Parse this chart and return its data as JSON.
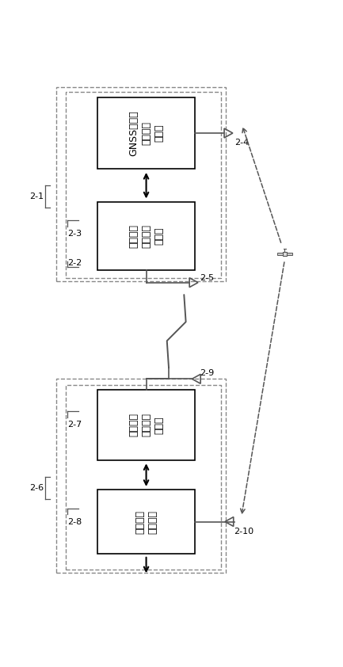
{
  "fig_width": 4.33,
  "fig_height": 8.42,
  "dpi": 100,
  "bg_color": "#ffffff",
  "box_fill": "#ffffff",
  "box_edge": "#000000",
  "dash_edge": "#888888",
  "line_color": "#555555",
  "arrow_color": "#000000",
  "text_color": "#000000",
  "box1_lines": [
    "GNSS基准站",
    "数据处理",
    "接收机"
  ],
  "box2_lines": [
    "差分数据",
    "编码调制",
    "播发器"
  ],
  "box3_lines": [
    "差分数据",
    "编码调制",
    "播发器"
  ],
  "box4_lines": [
    "组合定位",
    "解算装置"
  ],
  "label_2_1": "2-1",
  "label_2_2": "2-2",
  "label_2_3": "2-3",
  "label_2_4": "2-4",
  "label_2_5": "2-5",
  "label_2_6": "2-6",
  "label_2_7": "2-7",
  "label_2_8": "2-8",
  "label_2_9": "2-9",
  "label_2_10": "2-10"
}
